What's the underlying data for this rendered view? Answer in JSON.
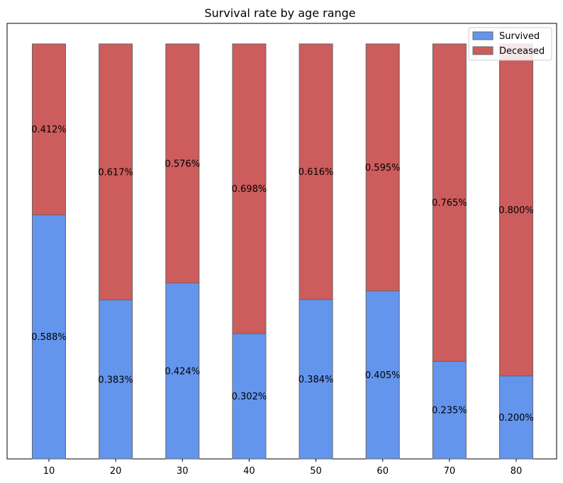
{
  "chart_data": {
    "type": "bar",
    "stacked": true,
    "title": "Survival rate by age range",
    "xlabel": "",
    "ylabel": "",
    "categories": [
      "10",
      "20",
      "30",
      "40",
      "50",
      "60",
      "70",
      "80"
    ],
    "ylim": [
      0,
      1.05
    ],
    "y_ticks_visible": false,
    "grid": false,
    "legend_position": "top-right",
    "series": [
      {
        "name": "Survived",
        "color": "#6495ed",
        "values": [
          0.588,
          0.383,
          0.424,
          0.302,
          0.384,
          0.405,
          0.235,
          0.2
        ],
        "labels": [
          "0.588%",
          "0.383%",
          "0.424%",
          "0.302%",
          "0.384%",
          "0.405%",
          "0.235%",
          "0.200%"
        ]
      },
      {
        "name": "Deceased",
        "color": "#cd5c5c",
        "values": [
          0.412,
          0.617,
          0.576,
          0.698,
          0.616,
          0.595,
          0.765,
          0.8
        ],
        "labels": [
          "0.412%",
          "0.617%",
          "0.576%",
          "0.698%",
          "0.616%",
          "0.595%",
          "0.765%",
          "0.800%"
        ]
      }
    ]
  }
}
